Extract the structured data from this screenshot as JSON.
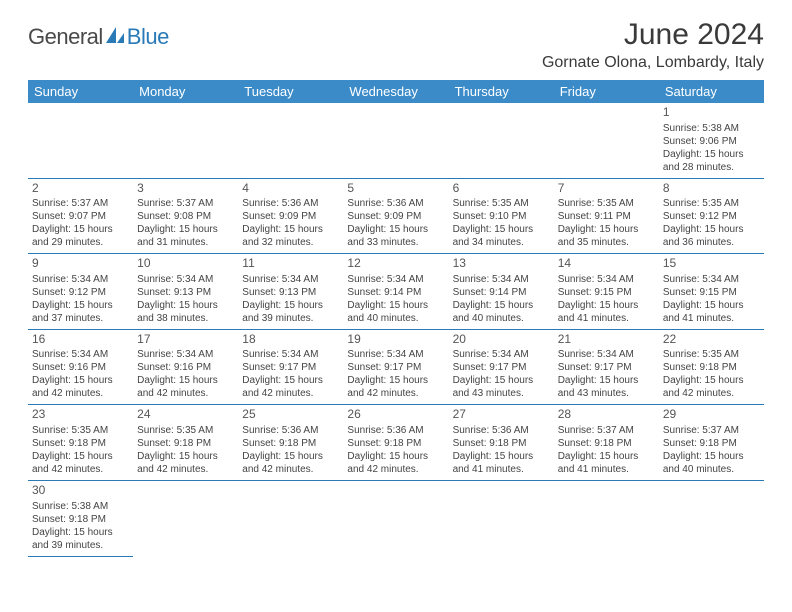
{
  "logo": {
    "text1": "General",
    "text2": "Blue"
  },
  "title": "June 2024",
  "location": "Gornate Olona, Lombardy, Italy",
  "colors": {
    "header_bg": "#3b8bc9",
    "header_text": "#ffffff",
    "border": "#2a7ab8",
    "logo_gray": "#4a4a4a",
    "logo_blue": "#2a7ab8",
    "text": "#444444"
  },
  "daynames": [
    "Sunday",
    "Monday",
    "Tuesday",
    "Wednesday",
    "Thursday",
    "Friday",
    "Saturday"
  ],
  "weeks": [
    [
      null,
      null,
      null,
      null,
      null,
      null,
      {
        "n": "1",
        "sunrise": "5:38 AM",
        "sunset": "9:06 PM",
        "dl": "15 hours and 28 minutes."
      }
    ],
    [
      {
        "n": "2",
        "sunrise": "5:37 AM",
        "sunset": "9:07 PM",
        "dl": "15 hours and 29 minutes."
      },
      {
        "n": "3",
        "sunrise": "5:37 AM",
        "sunset": "9:08 PM",
        "dl": "15 hours and 31 minutes."
      },
      {
        "n": "4",
        "sunrise": "5:36 AM",
        "sunset": "9:09 PM",
        "dl": "15 hours and 32 minutes."
      },
      {
        "n": "5",
        "sunrise": "5:36 AM",
        "sunset": "9:09 PM",
        "dl": "15 hours and 33 minutes."
      },
      {
        "n": "6",
        "sunrise": "5:35 AM",
        "sunset": "9:10 PM",
        "dl": "15 hours and 34 minutes."
      },
      {
        "n": "7",
        "sunrise": "5:35 AM",
        "sunset": "9:11 PM",
        "dl": "15 hours and 35 minutes."
      },
      {
        "n": "8",
        "sunrise": "5:35 AM",
        "sunset": "9:12 PM",
        "dl": "15 hours and 36 minutes."
      }
    ],
    [
      {
        "n": "9",
        "sunrise": "5:34 AM",
        "sunset": "9:12 PM",
        "dl": "15 hours and 37 minutes."
      },
      {
        "n": "10",
        "sunrise": "5:34 AM",
        "sunset": "9:13 PM",
        "dl": "15 hours and 38 minutes."
      },
      {
        "n": "11",
        "sunrise": "5:34 AM",
        "sunset": "9:13 PM",
        "dl": "15 hours and 39 minutes."
      },
      {
        "n": "12",
        "sunrise": "5:34 AM",
        "sunset": "9:14 PM",
        "dl": "15 hours and 40 minutes."
      },
      {
        "n": "13",
        "sunrise": "5:34 AM",
        "sunset": "9:14 PM",
        "dl": "15 hours and 40 minutes."
      },
      {
        "n": "14",
        "sunrise": "5:34 AM",
        "sunset": "9:15 PM",
        "dl": "15 hours and 41 minutes."
      },
      {
        "n": "15",
        "sunrise": "5:34 AM",
        "sunset": "9:15 PM",
        "dl": "15 hours and 41 minutes."
      }
    ],
    [
      {
        "n": "16",
        "sunrise": "5:34 AM",
        "sunset": "9:16 PM",
        "dl": "15 hours and 42 minutes."
      },
      {
        "n": "17",
        "sunrise": "5:34 AM",
        "sunset": "9:16 PM",
        "dl": "15 hours and 42 minutes."
      },
      {
        "n": "18",
        "sunrise": "5:34 AM",
        "sunset": "9:17 PM",
        "dl": "15 hours and 42 minutes."
      },
      {
        "n": "19",
        "sunrise": "5:34 AM",
        "sunset": "9:17 PM",
        "dl": "15 hours and 42 minutes."
      },
      {
        "n": "20",
        "sunrise": "5:34 AM",
        "sunset": "9:17 PM",
        "dl": "15 hours and 43 minutes."
      },
      {
        "n": "21",
        "sunrise": "5:34 AM",
        "sunset": "9:17 PM",
        "dl": "15 hours and 43 minutes."
      },
      {
        "n": "22",
        "sunrise": "5:35 AM",
        "sunset": "9:18 PM",
        "dl": "15 hours and 42 minutes."
      }
    ],
    [
      {
        "n": "23",
        "sunrise": "5:35 AM",
        "sunset": "9:18 PM",
        "dl": "15 hours and 42 minutes."
      },
      {
        "n": "24",
        "sunrise": "5:35 AM",
        "sunset": "9:18 PM",
        "dl": "15 hours and 42 minutes."
      },
      {
        "n": "25",
        "sunrise": "5:36 AM",
        "sunset": "9:18 PM",
        "dl": "15 hours and 42 minutes."
      },
      {
        "n": "26",
        "sunrise": "5:36 AM",
        "sunset": "9:18 PM",
        "dl": "15 hours and 42 minutes."
      },
      {
        "n": "27",
        "sunrise": "5:36 AM",
        "sunset": "9:18 PM",
        "dl": "15 hours and 41 minutes."
      },
      {
        "n": "28",
        "sunrise": "5:37 AM",
        "sunset": "9:18 PM",
        "dl": "15 hours and 41 minutes."
      },
      {
        "n": "29",
        "sunrise": "5:37 AM",
        "sunset": "9:18 PM",
        "dl": "15 hours and 40 minutes."
      }
    ],
    [
      {
        "n": "30",
        "sunrise": "5:38 AM",
        "sunset": "9:18 PM",
        "dl": "15 hours and 39 minutes."
      },
      null,
      null,
      null,
      null,
      null,
      null
    ]
  ],
  "labels": {
    "sunrise": "Sunrise:",
    "sunset": "Sunset:",
    "daylight": "Daylight:"
  }
}
